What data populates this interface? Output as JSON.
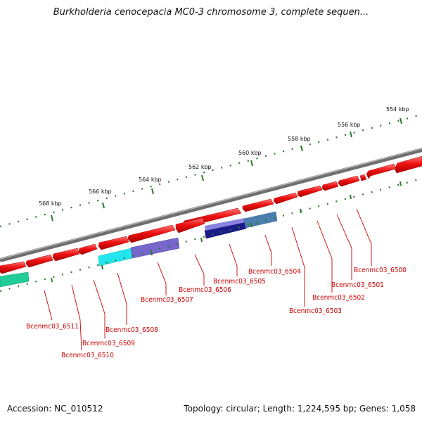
{
  "title": "Burkholderia cenocepacia MC0-3 chromosome 3, complete sequen...",
  "footer": {
    "accession": "Accession: NC_010512",
    "summary": "Topology: circular; Length: 1,224,595 bp; Genes: 1,058"
  },
  "scale_labels": [
    "554 kbp",
    "556 kbp",
    "558 kbp",
    "560 kbp",
    "562 kbp",
    "564 kbp",
    "566 kbp",
    "568 kbp"
  ],
  "gene_labels": [
    "Bcenmc03_6500",
    "Bcenmc03_6501",
    "Bcenmc03_6502",
    "Bcenmc03_6503",
    "Bcenmc03_6504",
    "Bcenmc03_6505",
    "Bcenmc03_6506",
    "Bcenmc03_6507",
    "Bcenmc03_6508",
    "Bcenmc03_6509",
    "Bcenmc03_6510",
    "Bcenmc03_6511"
  ],
  "colors": {
    "cds": "#ee1111",
    "backbone": "#888888",
    "ticks": "#2a7a2a",
    "label": "#cc0000",
    "feature_cyan": "#22e6ee",
    "feature_purple": "#7766cc",
    "feature_navy": "#1a1a88",
    "feature_steel": "#4a7fb0",
    "feature_teal": "#22cc99"
  }
}
